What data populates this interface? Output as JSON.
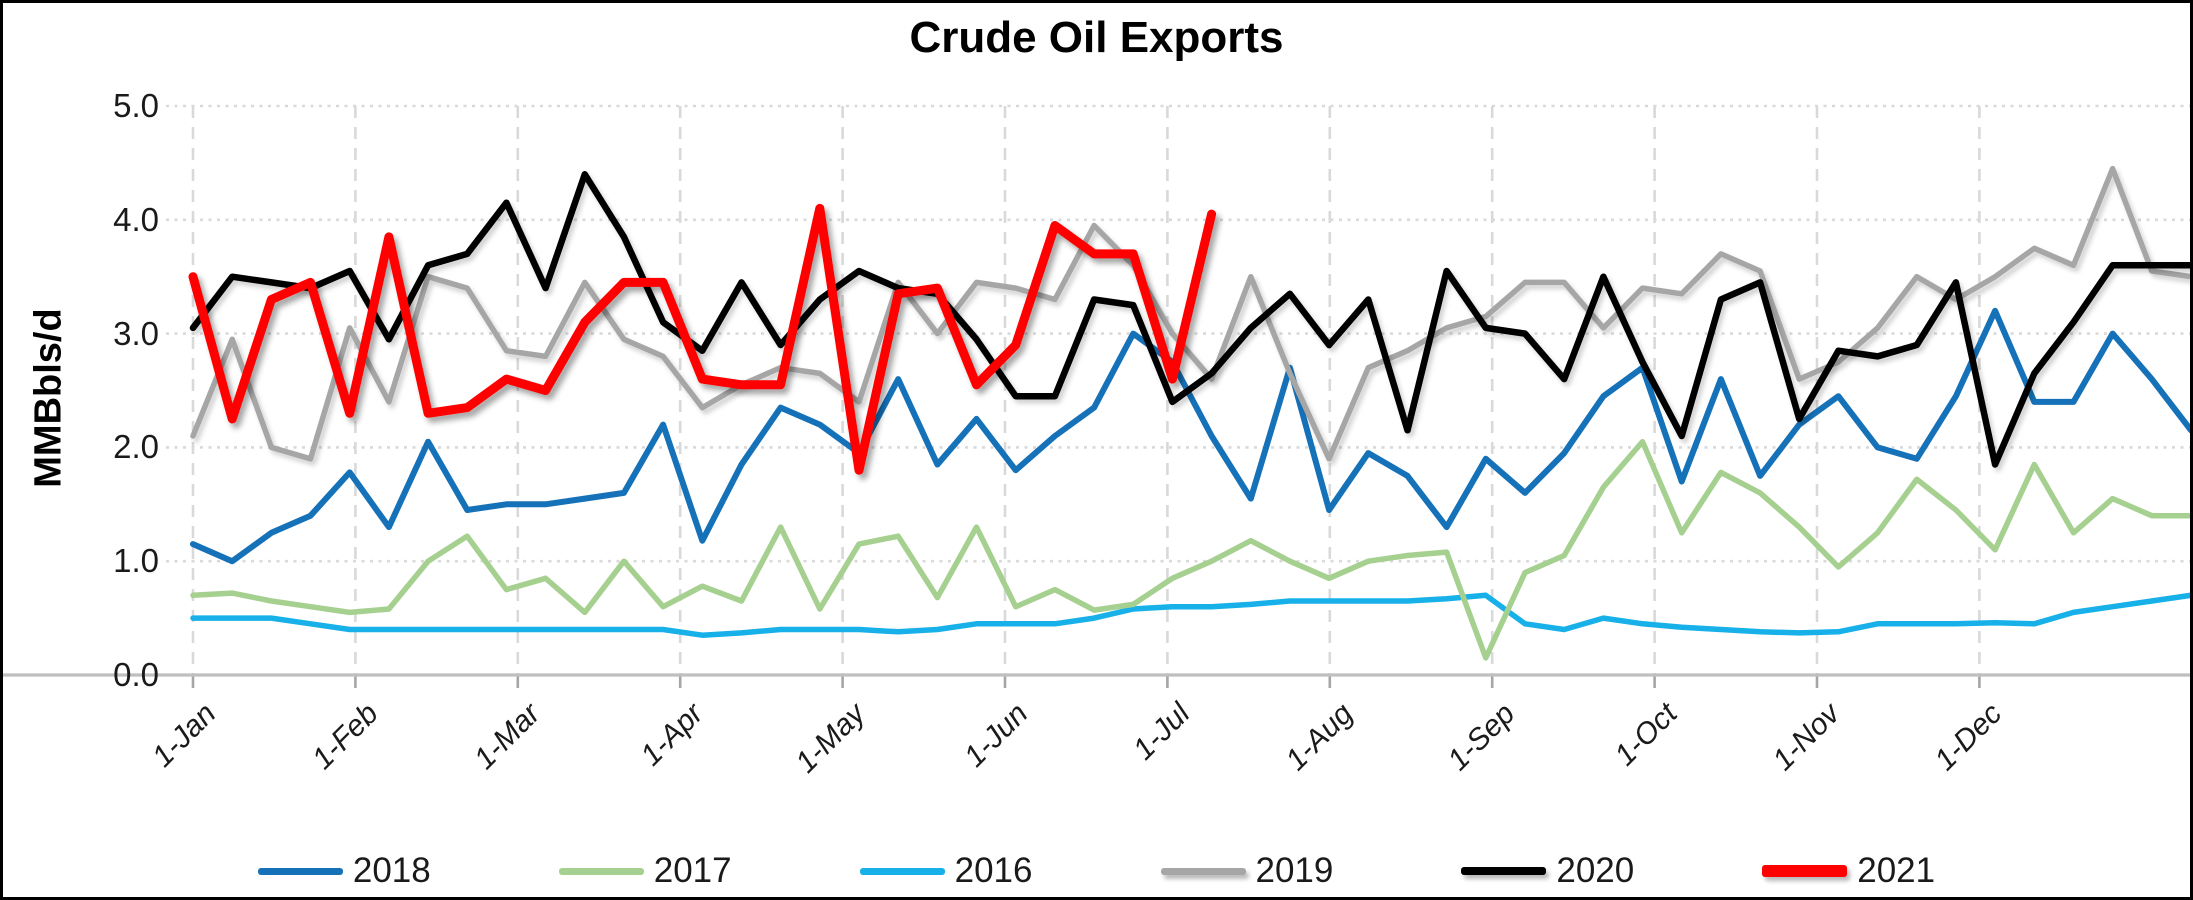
{
  "title": "Crude Oil Exports",
  "y_axis": {
    "label": "MMBbls/d",
    "ticks": [
      "5.0",
      "4.0",
      "3.0",
      "2.0",
      "1.0",
      "0.0"
    ]
  },
  "x_axis": {
    "labels": [
      "1-Jan",
      "1-Feb",
      "1-Mar",
      "1-Apr",
      "1-May",
      "1-Jun",
      "1-Jul",
      "1-Aug",
      "1-Sep",
      "1-Oct",
      "1-Nov",
      "1-Dec"
    ]
  },
  "legend": {
    "order_of_series_indexes": [
      2,
      1,
      0,
      3,
      4,
      5
    ]
  },
  "colors": {
    "gridline": "#D9D9D9",
    "axis_line": "#BFBFBF",
    "tick_mark": "#A6A6A6",
    "text": "#1a1a1a",
    "background": "#ffffff",
    "frame_border": "#000000"
  },
  "chart_data": {
    "type": "line",
    "title": "Crude Oil Exports",
    "xlabel": "",
    "ylabel": "MMBbls/d",
    "ylim": [
      0,
      5
    ],
    "y_tick_step": 1.0,
    "x_unit": "weekly points, Jan through Dec",
    "x_month_tick_labels": [
      "1-Jan",
      "1-Feb",
      "1-Mar",
      "1-Apr",
      "1-May",
      "1-Jun",
      "1-Jul",
      "1-Aug",
      "1-Sep",
      "1-Oct",
      "1-Nov",
      "1-Dec"
    ],
    "grid": {
      "horizontal": "dotted",
      "vertical_monthly": "dashed"
    },
    "legend_position": "bottom",
    "note_visible_in_pixels": "2021 series ends in early July",
    "series": [
      {
        "name": "2016",
        "color": "#17B0E9",
        "line_width": 5.5,
        "shadow": false,
        "values": [
          0.5,
          0.5,
          0.5,
          0.45,
          0.4,
          0.4,
          0.4,
          0.4,
          0.4,
          0.4,
          0.4,
          0.4,
          0.4,
          0.35,
          0.37,
          0.4,
          0.4,
          0.4,
          0.38,
          0.4,
          0.45,
          0.45,
          0.45,
          0.5,
          0.58,
          0.6,
          0.6,
          0.62,
          0.65,
          0.65,
          0.65,
          0.65,
          0.67,
          0.7,
          0.45,
          0.4,
          0.5,
          0.45,
          0.42,
          0.4,
          0.38,
          0.37,
          0.38,
          0.45,
          0.45,
          0.45,
          0.46,
          0.45,
          0.55,
          0.6,
          0.65,
          0.7
        ]
      },
      {
        "name": "2017",
        "color": "#A6D08F",
        "line_width": 5.5,
        "shadow": false,
        "values": [
          0.7,
          0.72,
          0.65,
          0.6,
          0.55,
          0.58,
          1.0,
          1.22,
          0.75,
          0.85,
          0.55,
          1.0,
          0.6,
          0.78,
          0.65,
          1.3,
          0.58,
          1.15,
          1.22,
          0.68,
          1.3,
          0.6,
          0.75,
          0.57,
          0.62,
          0.85,
          1.0,
          1.18,
          1.0,
          0.85,
          1.0,
          1.05,
          1.08,
          0.15,
          0.9,
          1.05,
          1.65,
          2.05,
          1.25,
          1.78,
          1.6,
          1.3,
          0.95,
          1.25,
          1.72,
          1.45,
          1.1,
          1.85,
          1.25,
          1.55,
          1.4,
          1.4
        ]
      },
      {
        "name": "2018",
        "color": "#1571B8",
        "line_width": 6,
        "shadow": false,
        "values": [
          1.15,
          1.0,
          1.25,
          1.4,
          1.78,
          1.3,
          2.05,
          1.45,
          1.5,
          1.5,
          1.55,
          1.6,
          2.2,
          1.18,
          1.85,
          2.35,
          2.2,
          1.95,
          2.6,
          1.85,
          2.25,
          1.8,
          2.1,
          2.35,
          3.0,
          2.75,
          2.1,
          1.55,
          2.7,
          1.45,
          1.95,
          1.75,
          1.3,
          1.9,
          1.6,
          1.95,
          2.45,
          2.7,
          1.7,
          2.6,
          1.75,
          2.2,
          2.45,
          2.0,
          1.9,
          2.45,
          3.2,
          2.4,
          2.4,
          3.0,
          2.6,
          2.15
        ]
      },
      {
        "name": "2019",
        "color": "#A6A6A6",
        "line_width": 5.5,
        "shadow": true,
        "values": [
          2.1,
          2.95,
          2.0,
          1.9,
          3.05,
          2.4,
          3.5,
          3.4,
          2.85,
          2.8,
          3.45,
          2.95,
          2.8,
          2.35,
          2.55,
          2.7,
          2.65,
          2.4,
          3.45,
          3.0,
          3.45,
          3.4,
          3.3,
          3.95,
          3.6,
          3.0,
          2.6,
          3.5,
          2.65,
          1.9,
          2.7,
          2.85,
          3.05,
          3.15,
          3.45,
          3.45,
          3.05,
          3.4,
          3.35,
          3.7,
          3.55,
          2.6,
          2.75,
          3.05,
          3.5,
          3.3,
          3.5,
          3.75,
          3.6,
          4.45,
          3.55,
          3.5
        ]
      },
      {
        "name": "2020",
        "color": "#000000",
        "line_width": 6.5,
        "shadow": true,
        "values": [
          3.05,
          3.5,
          3.45,
          3.4,
          3.55,
          2.95,
          3.6,
          3.7,
          4.15,
          3.4,
          4.4,
          3.85,
          3.1,
          2.85,
          3.45,
          2.9,
          3.3,
          3.55,
          3.4,
          3.35,
          2.95,
          2.45,
          2.45,
          3.3,
          3.25,
          2.4,
          2.65,
          3.05,
          3.35,
          2.9,
          3.3,
          2.15,
          3.55,
          3.05,
          3.0,
          2.6,
          3.5,
          2.75,
          2.1,
          3.3,
          3.45,
          2.25,
          2.85,
          2.8,
          2.9,
          3.45,
          1.85,
          2.65,
          3.1,
          3.6,
          3.6,
          3.6
        ]
      },
      {
        "name": "2021",
        "color": "#FF0000",
        "line_width": 9,
        "shadow": true,
        "values": [
          3.5,
          2.25,
          3.3,
          3.45,
          2.3,
          3.85,
          2.3,
          2.35,
          2.6,
          2.5,
          3.1,
          3.45,
          3.45,
          2.6,
          2.55,
          2.55,
          4.1,
          1.8,
          3.35,
          3.4,
          2.55,
          2.9,
          3.95,
          3.7,
          3.7,
          2.6,
          4.05
        ]
      }
    ]
  }
}
